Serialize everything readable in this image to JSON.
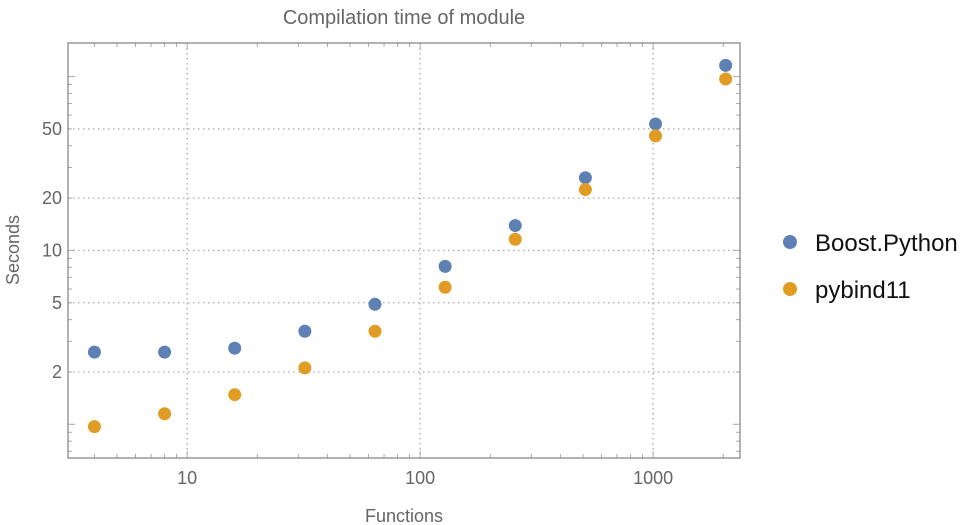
{
  "chart_data": {
    "type": "scatter",
    "title": "Compilation time of module",
    "xlabel": "Functions",
    "ylabel": "Seconds",
    "xscale": "log",
    "yscale": "log",
    "xlim": [
      3.08,
      2360
    ],
    "ylim": [
      0.64,
      156
    ],
    "xticks": [
      10,
      100,
      1000
    ],
    "yticks": [
      2,
      5,
      10,
      20,
      50
    ],
    "xtick_labels": [
      "10",
      "100",
      "1000"
    ],
    "ytick_labels": [
      "2",
      "5",
      "10",
      "20",
      "50"
    ],
    "grid": true,
    "legend_position": "right",
    "x": [
      4,
      8,
      16,
      32,
      64,
      128,
      256,
      512,
      1024,
      2048
    ],
    "series": [
      {
        "name": "Boost.Python",
        "color": "#5e81b5",
        "values": [
          2.6,
          2.6,
          2.74,
          3.43,
          4.9,
          8.1,
          13.9,
          26.2,
          53.4,
          116
        ]
      },
      {
        "name": "pybind11",
        "color": "#e19c24",
        "values": [
          0.97,
          1.15,
          1.48,
          2.11,
          3.43,
          6.14,
          11.6,
          22.4,
          45.6,
          96.8
        ]
      }
    ]
  }
}
